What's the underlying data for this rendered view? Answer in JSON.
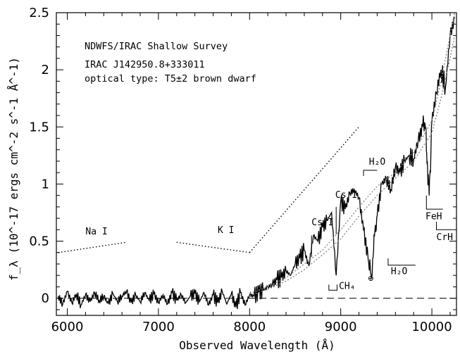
{
  "chart_data": {
    "type": "line",
    "title": "",
    "xlabel": "Observed Wavelength (Å)",
    "ylabel": "f_λ (10^-17 ergs cm^-2 s^-1 Å^-1)",
    "xlim": [
      5880,
      10270
    ],
    "ylim": [
      -0.15,
      2.5
    ],
    "xticks": [
      6000,
      7000,
      8000,
      9000,
      10000
    ],
    "yticks": [
      0,
      0.5,
      1,
      1.5,
      2,
      2.5
    ],
    "info_lines": [
      "NDWFS/IRAC Shallow Survey",
      "IRAC J142950.8+333011",
      "optical type: T5±2 brown dwarf"
    ],
    "series": [
      {
        "style": "solid",
        "x": [
          5900,
          5950,
          6000,
          6050,
          6100,
          6150,
          6200,
          6250,
          6300,
          6350,
          6400,
          6450,
          6500,
          6550,
          6600,
          6650,
          6700,
          6750,
          6800,
          6850,
          6900,
          6950,
          7000,
          7050,
          7100,
          7150,
          7200,
          7250,
          7300,
          7350,
          7400,
          7450,
          7500,
          7550,
          7600,
          7650,
          7700,
          7750,
          7800,
          7850,
          7900,
          7950,
          8000,
          8050,
          8100,
          8150,
          8200,
          8250,
          8300,
          8350,
          8400,
          8450,
          8500,
          8550,
          8600,
          8650,
          8700,
          8750,
          8800,
          8850,
          8900,
          8950,
          9000,
          9050,
          9100,
          9150,
          9200,
          9250,
          9300,
          9340,
          9370,
          9400,
          9450,
          9500,
          9550,
          9600,
          9650,
          9700,
          9750,
          9800,
          9850,
          9900,
          9930,
          9950,
          9970,
          10000,
          10050,
          10100,
          10150,
          10200,
          10250
        ],
        "y": [
          0.02,
          -0.05,
          0.06,
          -0.04,
          0.04,
          -0.06,
          0.03,
          -0.03,
          0.05,
          -0.02,
          0.02,
          -0.05,
          0.04,
          -0.03,
          0.02,
          0.06,
          -0.04,
          0.03,
          -0.03,
          0.05,
          -0.02,
          0.04,
          -0.04,
          0.03,
          -0.05,
          0.05,
          -0.02,
          0.03,
          -0.04,
          0.02,
          0.04,
          -0.03,
          0.05,
          -0.06,
          0.03,
          -0.04,
          0.06,
          -0.05,
          0.04,
          -0.08,
          0.05,
          -0.06,
          0.03,
          0.02,
          0.05,
          0.07,
          0.1,
          0.12,
          0.16,
          0.18,
          0.24,
          0.2,
          0.3,
          0.35,
          0.42,
          0.28,
          0.55,
          0.5,
          0.62,
          0.68,
          0.75,
          0.2,
          0.85,
          0.78,
          0.92,
          0.95,
          0.88,
          0.6,
          0.35,
          0.18,
          0.55,
          0.72,
          1.0,
          1.05,
          0.95,
          1.15,
          1.1,
          1.2,
          1.25,
          1.22,
          1.38,
          1.5,
          1.48,
          1.2,
          0.9,
          1.55,
          1.8,
          2.0,
          1.85,
          2.3,
          2.45
        ]
      },
      {
        "style": "dotted",
        "x": [
          8000,
          8200,
          8400,
          8600,
          8800,
          9000,
          9200,
          9400,
          9600,
          9800,
          10000,
          10100,
          10200,
          10250
        ],
        "y": [
          0.02,
          0.08,
          0.15,
          0.25,
          0.38,
          0.52,
          0.72,
          0.9,
          1.05,
          1.2,
          1.45,
          1.75,
          2.1,
          2.3
        ]
      },
      {
        "style": "dotted",
        "x": [
          8000,
          8200,
          8400,
          8600,
          8800,
          9000,
          9200,
          9400,
          9600,
          9800,
          10000,
          10100,
          10200,
          10250
        ],
        "y": [
          0.04,
          0.1,
          0.18,
          0.3,
          0.42,
          0.6,
          0.8,
          0.98,
          1.1,
          1.28,
          1.55,
          1.9,
          2.3,
          2.5
        ]
      }
    ],
    "dotted_continuum": [
      {
        "x": [
          5900,
          6650
        ],
        "y": [
          0.4,
          0.49
        ]
      },
      {
        "x": [
          7200,
          8000
        ],
        "y": [
          0.49,
          0.4
        ]
      },
      {
        "x": [
          8000,
          9200
        ],
        "y": [
          0.4,
          1.5
        ]
      }
    ],
    "zero_line": 0,
    "annotations": [
      {
        "text": "Na I",
        "x": 6200,
        "y": 0.56
      },
      {
        "text": "K I",
        "x": 7650,
        "y": 0.57
      },
      {
        "text": "Cs I",
        "x": 8680,
        "y": 0.64
      },
      {
        "text": "Cs I",
        "x": 8940,
        "y": 0.88
      },
      {
        "text": "H₂O",
        "x": 9310,
        "y": 1.17
      },
      {
        "text": "FeH",
        "x": 9930,
        "y": 0.69
      },
      {
        "text": "CrH",
        "x": 10050,
        "y": 0.51
      },
      {
        "text": "H₂O",
        "x": 9550,
        "y": 0.21
      },
      {
        "text": "CH₄",
        "x": 8980,
        "y": 0.08
      },
      {
        "text": "⊕",
        "x": 9330,
        "y": 0.15
      }
    ]
  }
}
